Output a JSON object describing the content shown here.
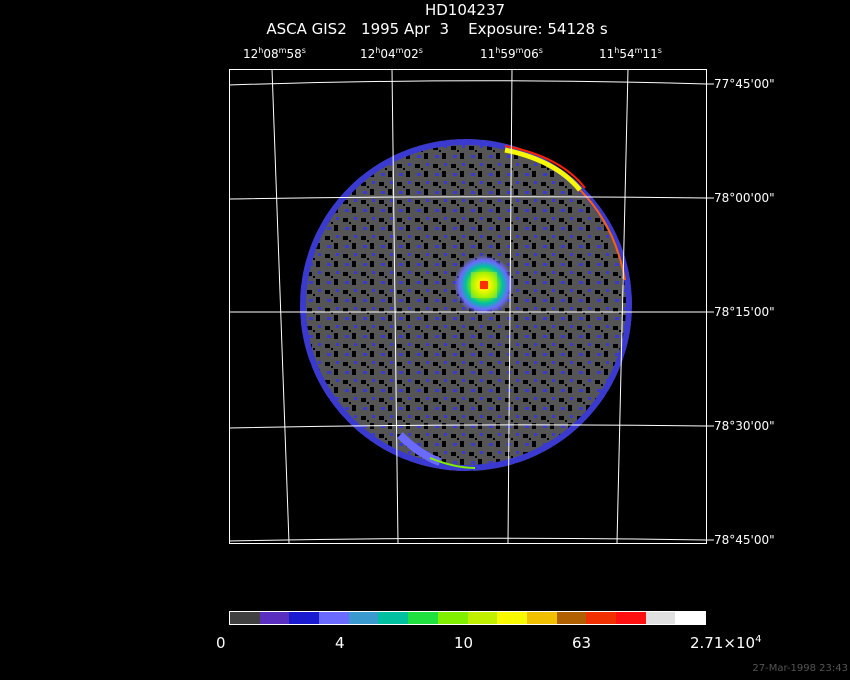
{
  "header": {
    "target": "HD104237",
    "line2": "ASCA GIS2   1995 Apr  3    Exposure: 54128 s"
  },
  "ra_ticks": [
    {
      "h": "12",
      "m": "08",
      "s": "58"
    },
    {
      "h": "12",
      "m": "04",
      "s": "02"
    },
    {
      "h": "11",
      "m": "59",
      "s": "06"
    },
    {
      "h": "11",
      "m": "54",
      "s": "11"
    }
  ],
  "dec_ticks": [
    "77°45'00\"",
    "78°00'00\"",
    "78°15'00\"",
    "78°30'00\"",
    "78°45'00\""
  ],
  "colorbar": {
    "colors": [
      "#404040",
      "#5a2fc0",
      "#1a1ad0",
      "#6a6aff",
      "#3a9ad0",
      "#00c0a0",
      "#20e040",
      "#80f000",
      "#c0f000",
      "#f8f800",
      "#f0c000",
      "#b06000",
      "#f03000",
      "#ff1010",
      "#e0e0e0",
      "#ffffff"
    ],
    "labels": [
      {
        "text": "0"
      },
      {
        "text": "4"
      },
      {
        "text": "10"
      },
      {
        "text": "63"
      },
      {
        "text": "2.71×10",
        "sup": "4"
      }
    ]
  },
  "timestamp": "27-Mar-1998 23:43"
}
